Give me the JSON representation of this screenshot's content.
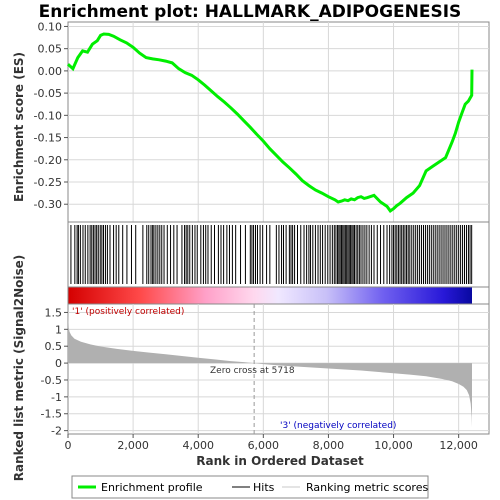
{
  "chart_data": {
    "type": "line",
    "title": "Enrichment plot: HALLMARK_ADIPOGENESIS",
    "xlabel": "Rank in Ordered Dataset",
    "xlim": [
      0,
      12500
    ],
    "xticks": [
      0,
      2000,
      4000,
      6000,
      8000,
      10000,
      12000
    ],
    "xtick_labels": [
      "0",
      "2,000",
      "4,000",
      "6,000",
      "8,000",
      "10,000",
      "12,000"
    ],
    "es_panel": {
      "ylabel": "Enrichment score (ES)",
      "ylim": [
        -0.34,
        0.11
      ],
      "yticks": [
        0.1,
        0.05,
        0.0,
        -0.05,
        -0.1,
        -0.15,
        -0.2,
        -0.25,
        -0.3
      ],
      "ytick_labels": [
        "0.10",
        "0.05",
        "0.00",
        "-0.05",
        "-0.10",
        "-0.15",
        "-0.20",
        "-0.25",
        "-0.30"
      ],
      "grid": true,
      "series": [
        {
          "name": "Enrichment profile",
          "color": "#00ee00",
          "x": [
            0,
            150,
            300,
            450,
            600,
            750,
            900,
            1000,
            1100,
            1250,
            1400,
            1600,
            1800,
            2000,
            2200,
            2400,
            2600,
            2800,
            3000,
            3200,
            3400,
            3600,
            3800,
            4000,
            4200,
            4400,
            4600,
            4800,
            5000,
            5200,
            5400,
            5600,
            5800,
            6000,
            6200,
            6400,
            6600,
            6800,
            7000,
            7200,
            7400,
            7600,
            7800,
            8000,
            8200,
            8300,
            8400,
            8500,
            8600,
            8700,
            8800,
            8900,
            9000,
            9100,
            9200,
            9400,
            9600,
            9800,
            9900,
            10000,
            10100,
            10200,
            10400,
            10600,
            10800,
            11000,
            11200,
            11400,
            11600,
            11800,
            11900,
            12000,
            12100,
            12200,
            12300,
            12400,
            12410
          ],
          "y": [
            0.015,
            0.005,
            0.03,
            0.045,
            0.042,
            0.06,
            0.068,
            0.08,
            0.083,
            0.082,
            0.078,
            0.07,
            0.063,
            0.053,
            0.04,
            0.03,
            0.027,
            0.025,
            0.022,
            0.018,
            0.005,
            -0.004,
            -0.01,
            -0.02,
            -0.032,
            -0.045,
            -0.058,
            -0.07,
            -0.083,
            -0.097,
            -0.112,
            -0.127,
            -0.143,
            -0.158,
            -0.175,
            -0.19,
            -0.205,
            -0.218,
            -0.232,
            -0.247,
            -0.258,
            -0.268,
            -0.275,
            -0.283,
            -0.29,
            -0.295,
            -0.293,
            -0.29,
            -0.292,
            -0.288,
            -0.29,
            -0.285,
            -0.283,
            -0.287,
            -0.285,
            -0.28,
            -0.295,
            -0.305,
            -0.315,
            -0.31,
            -0.303,
            -0.298,
            -0.285,
            -0.275,
            -0.258,
            -0.225,
            -0.215,
            -0.205,
            -0.195,
            -0.16,
            -0.14,
            -0.115,
            -0.095,
            -0.075,
            -0.068,
            -0.055,
            0.003
          ]
        }
      ]
    },
    "hits_panel": {
      "legend_label": "Hits",
      "positions": [
        90,
        210,
        280,
        320,
        380,
        460,
        530,
        610,
        680,
        730,
        780,
        830,
        880,
        930,
        990,
        1040,
        1090,
        1150,
        1210,
        1290,
        1400,
        1480,
        1560,
        1680,
        1810,
        1950,
        2080,
        2300,
        2420,
        2480,
        2550,
        2600,
        2640,
        2700,
        2760,
        2820,
        2880,
        2950,
        3050,
        3150,
        3250,
        3350,
        3500,
        3580,
        3630,
        3680,
        3740,
        3820,
        3900,
        3970,
        4080,
        4160,
        4230,
        4300,
        4400,
        4500,
        4620,
        4700,
        4780,
        4880,
        4960,
        5050,
        5150,
        5300,
        5450,
        5600,
        5650,
        5700,
        5760,
        5820,
        5900,
        5980,
        6100,
        6200,
        6400,
        6480,
        6560,
        6620,
        6700,
        6800,
        6850,
        6900,
        6960,
        7050,
        7150,
        7250,
        7330,
        7400,
        7450,
        7520,
        7600,
        7680,
        7750,
        7820,
        7900,
        7980,
        8050,
        8120,
        8180,
        8230,
        8280,
        8320,
        8360,
        8400,
        8440,
        8480,
        8520,
        8560,
        8600,
        8640,
        8680,
        8720,
        8760,
        8800,
        8850,
        8900,
        8950,
        9000,
        9060,
        9120,
        9180,
        9250,
        9320,
        9400,
        9500,
        9600,
        9700,
        9800,
        9880,
        9950,
        10000,
        10050,
        10100,
        10150,
        10200,
        10250,
        10300,
        10350,
        10400,
        10450,
        10500,
        10560,
        10620,
        10680,
        10740,
        10800,
        10860,
        10920,
        10980,
        11040,
        11100,
        11160,
        11220,
        11280,
        11340,
        11400,
        11460,
        11520,
        11580,
        11640,
        11700,
        11760,
        11820,
        11880,
        11940,
        12000,
        12060,
        12120,
        12180,
        12240,
        12300,
        12350,
        12400
      ]
    },
    "metric_panel": {
      "ylabel": "Ranked list metric (Signal2Noise)",
      "ylim": [
        -2.1,
        1.75
      ],
      "yticks": [
        1.5,
        1.0,
        0.5,
        0.0,
        -0.5,
        -1.0,
        -1.5,
        -2.0
      ],
      "ytick_labels": [
        "1.5",
        "1",
        "0.5",
        "0",
        "-0.5",
        "-1",
        "-1.5",
        "-2"
      ],
      "grid": true,
      "legend_label": "Ranking metric scores",
      "x": [
        0,
        20,
        50,
        100,
        200,
        400,
        700,
        1000,
        1500,
        2000,
        2500,
        3000,
        3500,
        4000,
        4500,
        5000,
        5400,
        5718,
        6000,
        6500,
        7000,
        7500,
        8000,
        8500,
        9000,
        9500,
        10000,
        10500,
        11000,
        11500,
        11800,
        12000,
        12150,
        12250,
        12320,
        12370,
        12400,
        12410
      ],
      "y": [
        1.6,
        1.05,
        0.92,
        0.82,
        0.72,
        0.63,
        0.55,
        0.49,
        0.42,
        0.36,
        0.31,
        0.26,
        0.21,
        0.16,
        0.11,
        0.06,
        0.03,
        0.0,
        -0.03,
        -0.07,
        -0.1,
        -0.13,
        -0.16,
        -0.19,
        -0.22,
        -0.26,
        -0.3,
        -0.34,
        -0.39,
        -0.47,
        -0.54,
        -0.62,
        -0.7,
        -0.8,
        -0.95,
        -1.2,
        -1.6,
        -1.9
      ]
    },
    "annotations": {
      "zero_cross": "Zero cross at 5718",
      "zero_cross_x": 5718,
      "positive": "'1' (positively correlated)",
      "negative": "'3' (negatively correlated)"
    },
    "legend": {
      "placement": "bottom",
      "entries": [
        "Enrichment profile",
        "Hits",
        "Ranking metric scores"
      ]
    },
    "colors": {
      "es_line": "#00ee00",
      "hit_line": "#000000",
      "metric_fill": "#b0b0b0",
      "positive_text": "#c00000",
      "negative_text": "#0000c0",
      "grid": "#d8d8d8"
    }
  }
}
